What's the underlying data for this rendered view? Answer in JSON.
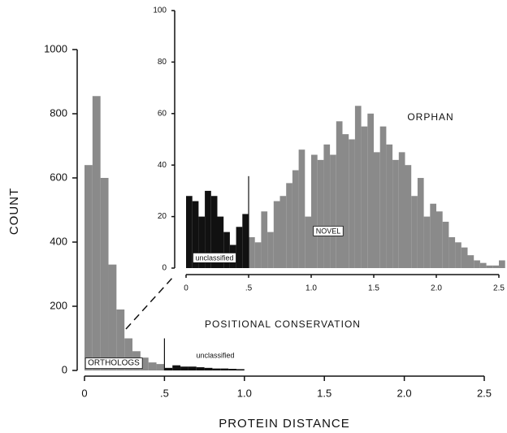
{
  "chart_data": [
    {
      "type": "histogram",
      "xlabel": "PROTEIN DISTANCE",
      "ylabel": "COUNT",
      "xlim": [
        0,
        2.6
      ],
      "ylim": [
        0,
        1000
      ],
      "xticks": [
        0,
        {
          "value": 0.5,
          "label": ".5"
        },
        {
          "value": 1,
          "label": "1.0"
        },
        1.5,
        {
          "value": 2,
          "label": "2.0"
        },
        2.5
      ],
      "yticks": [
        0,
        200,
        400,
        600,
        800,
        1000
      ],
      "series": [
        {
          "color": "#8a8a8a",
          "bins": [
            0,
            0.05,
            0.1,
            0.15,
            0.2,
            0.25,
            0.3,
            0.35,
            0.4,
            0.45,
            0.5
          ],
          "values": [
            640,
            855,
            600,
            330,
            190,
            100,
            60,
            40,
            25,
            20
          ]
        },
        {
          "color": "#111111",
          "bins": [
            0.5,
            0.55,
            0.6,
            0.65,
            0.7,
            0.75,
            0.8,
            0.85,
            0.9,
            0.95,
            1.0
          ],
          "values": [
            8,
            16,
            12,
            12,
            10,
            8,
            6,
            6,
            5,
            4
          ]
        }
      ],
      "annotations": [
        "ORTHOLOGS",
        "unclassified",
        "POSITIONAL CONSERVATION"
      ]
    },
    {
      "type": "histogram",
      "xlim": [
        0,
        2.5
      ],
      "ylim": [
        0,
        100
      ],
      "xticks": [
        0,
        {
          "value": 0.5,
          "label": ".5"
        },
        {
          "value": 1,
          "label": "1.0"
        },
        1.5,
        {
          "value": 2,
          "label": "2.0"
        },
        2.5
      ],
      "yticks": [
        0,
        20,
        40,
        60,
        80,
        100
      ],
      "series": [
        {
          "color": "#111111",
          "bins": [
            0,
            0.05,
            0.1,
            0.15,
            0.2,
            0.25,
            0.3,
            0.35,
            0.4,
            0.45,
            0.5
          ],
          "values": [
            28,
            26,
            20,
            30,
            28,
            20,
            14,
            9,
            16,
            21
          ]
        },
        {
          "color": "#8a8a8a",
          "bins": [
            0.5,
            0.55,
            0.6,
            0.65,
            0.7,
            0.75,
            0.8,
            0.85,
            0.9,
            0.95,
            1.0,
            1.05,
            1.1,
            1.15,
            1.2,
            1.25,
            1.3,
            1.35,
            1.4,
            1.45,
            1.5,
            1.55,
            1.6,
            1.65,
            1.7,
            1.75,
            1.8,
            1.85,
            1.9,
            1.95,
            2.0,
            2.05,
            2.1,
            2.15,
            2.2,
            2.25,
            2.3,
            2.35,
            2.4,
            2.45,
            2.5,
            2.55
          ],
          "values": [
            12,
            10,
            22,
            14,
            26,
            28,
            33,
            38,
            46,
            20,
            44,
            42,
            48,
            44,
            57,
            52,
            50,
            63,
            55,
            60,
            45,
            55,
            48,
            42,
            45,
            40,
            28,
            35,
            20,
            25,
            22,
            18,
            12,
            10,
            8,
            5,
            3,
            2,
            1,
            1,
            3
          ]
        }
      ],
      "annotations": [
        "ORPHAN",
        "NOVEL",
        "unclassified"
      ]
    }
  ]
}
